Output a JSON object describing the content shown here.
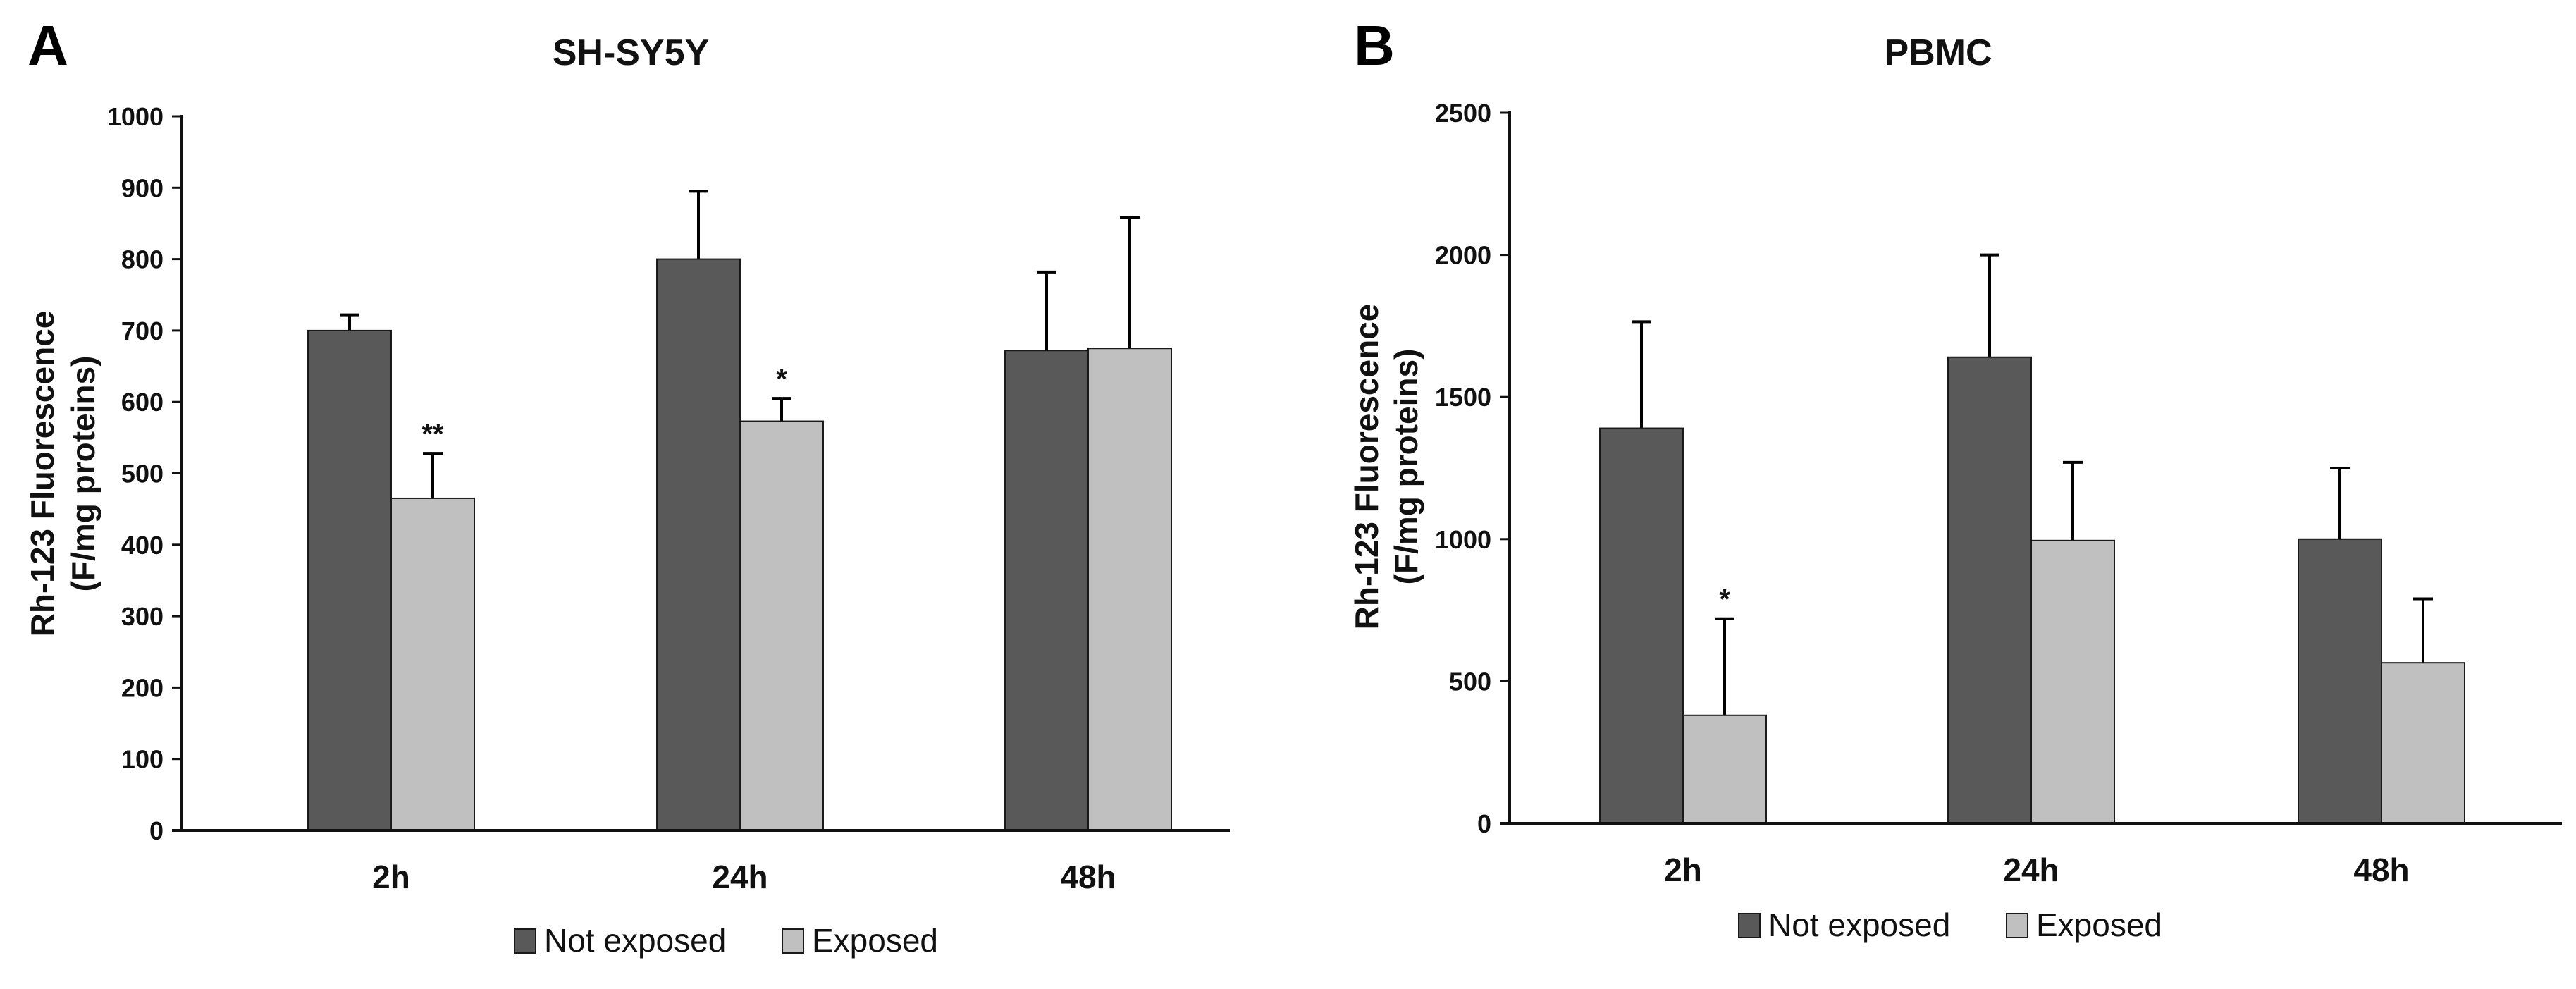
{
  "figure": {
    "colors": {
      "not_exposed": "#595959",
      "exposed": "#c0c0c0",
      "axis": "#111111",
      "outline": "#1a1a1a"
    }
  },
  "chart_data": [
    {
      "type": "bar",
      "panel_letter": "A",
      "title": "SH-SY5Y",
      "ylabel_line1": "Rh-123 Fluorescence",
      "ylabel_line2": "(F/mg proteins)",
      "xlabel": "",
      "categories": [
        "2h",
        "24h",
        "48h"
      ],
      "ylim": [
        0,
        1000
      ],
      "yticks": [
        0,
        100,
        200,
        300,
        400,
        500,
        600,
        700,
        800,
        900,
        1000
      ],
      "series": [
        {
          "name": "Not exposed",
          "values": [
            700,
            800,
            672
          ],
          "errors": [
            22,
            95,
            110
          ]
        },
        {
          "name": "Exposed",
          "values": [
            465,
            573,
            675
          ],
          "errors": [
            63,
            32,
            183
          ]
        }
      ],
      "annotations": [
        {
          "series": 1,
          "category": 0,
          "text": "**"
        },
        {
          "series": 1,
          "category": 1,
          "text": "*"
        }
      ],
      "legend": {
        "position": "bottom",
        "items": [
          "Not exposed",
          "Exposed"
        ]
      }
    },
    {
      "type": "bar",
      "panel_letter": "B",
      "title": "PBMC",
      "ylabel_line1": "Rh-123 Fluorescence",
      "ylabel_line2": "(F/mg proteins)",
      "xlabel": "",
      "categories": [
        "2h",
        "24h",
        "48h"
      ],
      "ylim": [
        0,
        2500
      ],
      "yticks": [
        0,
        500,
        1000,
        1500,
        2000,
        2500
      ],
      "series": [
        {
          "name": "Not exposed",
          "values": [
            1390,
            1640,
            1000
          ],
          "errors": [
            375,
            360,
            250
          ]
        },
        {
          "name": "Exposed",
          "values": [
            380,
            995,
            565
          ],
          "errors": [
            340,
            275,
            225
          ]
        }
      ],
      "annotations": [
        {
          "series": 1,
          "category": 0,
          "text": "*"
        }
      ],
      "legend": {
        "position": "bottom",
        "items": [
          "Not exposed",
          "Exposed"
        ]
      }
    }
  ]
}
